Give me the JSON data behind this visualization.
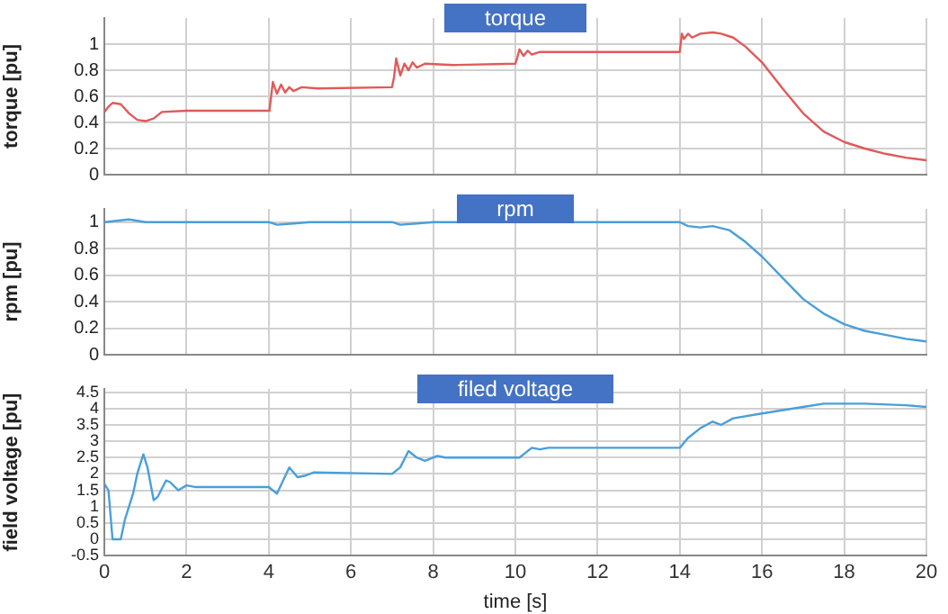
{
  "chart_data": [
    {
      "type": "line",
      "title": "torque",
      "ylabel": "torque [pu]",
      "xlim": [
        0,
        20
      ],
      "xticks": [
        0,
        2,
        4,
        6,
        8,
        10,
        12,
        14,
        16,
        18,
        20
      ],
      "ylim": [
        0,
        1.2
      ],
      "yticks": [
        0,
        0.2,
        0.4,
        0.6,
        0.8,
        1
      ],
      "grid": true,
      "tick_labels": "y",
      "series": [
        {
          "color": "#e05a5a",
          "x": [
            0,
            0.1,
            0.2,
            0.4,
            0.6,
            0.8,
            1.0,
            1.2,
            1.4,
            2,
            4,
            4.02,
            4.1,
            4.2,
            4.3,
            4.4,
            4.5,
            4.6,
            4.8,
            5.2,
            7,
            7.05,
            7.1,
            7.2,
            7.3,
            7.4,
            7.5,
            7.6,
            7.8,
            8.5,
            10,
            10.05,
            10.1,
            10.2,
            10.3,
            10.4,
            10.6,
            14,
            14.05,
            14.1,
            14.2,
            14.3,
            14.5,
            14.8,
            15.0,
            15.3,
            15.6,
            16,
            16.5,
            17,
            17.5,
            18,
            18.5,
            19,
            19.5,
            20
          ],
          "values": [
            0.48,
            0.52,
            0.55,
            0.54,
            0.47,
            0.42,
            0.41,
            0.43,
            0.48,
            0.49,
            0.49,
            0.5,
            0.71,
            0.62,
            0.69,
            0.63,
            0.67,
            0.64,
            0.67,
            0.66,
            0.67,
            0.75,
            0.89,
            0.76,
            0.85,
            0.8,
            0.86,
            0.82,
            0.85,
            0.84,
            0.85,
            0.9,
            0.96,
            0.91,
            0.95,
            0.92,
            0.94,
            0.94,
            1.08,
            1.04,
            1.08,
            1.05,
            1.08,
            1.09,
            1.08,
            1.05,
            0.98,
            0.86,
            0.66,
            0.47,
            0.33,
            0.25,
            0.2,
            0.16,
            0.13,
            0.11
          ]
        }
      ]
    },
    {
      "type": "line",
      "title": "rpm",
      "ylabel": "rpm [pu]",
      "xlim": [
        0,
        20
      ],
      "xticks": [
        0,
        2,
        4,
        6,
        8,
        10,
        12,
        14,
        16,
        18,
        20
      ],
      "ylim": [
        0,
        1.1
      ],
      "yticks": [
        0,
        0.2,
        0.4,
        0.6,
        0.8,
        1
      ],
      "grid": true,
      "tick_labels": "y",
      "series": [
        {
          "color": "#4a9fd8",
          "x": [
            0,
            0.3,
            0.6,
            1,
            4,
            4.2,
            4.6,
            5,
            7,
            7.2,
            7.6,
            8,
            14,
            14.2,
            14.5,
            14.8,
            15.2,
            15.6,
            16,
            16.5,
            17,
            17.5,
            18,
            18.5,
            19,
            19.5,
            20
          ],
          "values": [
            1.0,
            1.01,
            1.02,
            1.0,
            1.0,
            0.98,
            0.99,
            1.0,
            1.0,
            0.98,
            0.99,
            1.0,
            1.0,
            0.97,
            0.96,
            0.97,
            0.94,
            0.85,
            0.74,
            0.58,
            0.42,
            0.31,
            0.23,
            0.18,
            0.15,
            0.12,
            0.1
          ]
        }
      ]
    },
    {
      "type": "line",
      "title": "filed voltage",
      "xlabel": "time [s]",
      "ylabel": "field voltage [pu]",
      "xlim": [
        0,
        20
      ],
      "xticks": [
        0,
        2,
        4,
        6,
        8,
        10,
        12,
        14,
        16,
        18,
        20
      ],
      "ylim": [
        -0.5,
        4.6
      ],
      "yticks": [
        -0.5,
        0,
        0.5,
        1,
        1.5,
        2,
        2.5,
        3,
        3.5,
        4,
        4.5
      ],
      "grid": true,
      "series": [
        {
          "color": "#4a9fd8",
          "x": [
            0,
            0.1,
            0.2,
            0.4,
            0.5,
            0.7,
            0.8,
            0.95,
            1.05,
            1.2,
            1.3,
            1.5,
            1.6,
            1.8,
            2.0,
            2.2,
            4,
            4.2,
            4.5,
            4.7,
            4.9,
            5.1,
            7,
            7.2,
            7.4,
            7.6,
            7.8,
            8.1,
            8.3,
            10,
            10.1,
            10.4,
            10.6,
            10.8,
            14,
            14.2,
            14.5,
            14.8,
            15,
            15.3,
            16,
            17,
            17.5,
            18.5,
            19.5,
            20
          ],
          "values": [
            1.7,
            1.5,
            0,
            0,
            0.6,
            1.4,
            2.0,
            2.6,
            2.2,
            1.2,
            1.3,
            1.8,
            1.75,
            1.5,
            1.65,
            1.6,
            1.6,
            1.4,
            2.2,
            1.9,
            1.95,
            2.05,
            2.0,
            2.2,
            2.7,
            2.5,
            2.4,
            2.55,
            2.5,
            2.5,
            2.5,
            2.8,
            2.75,
            2.8,
            2.8,
            3.1,
            3.4,
            3.6,
            3.5,
            3.7,
            3.85,
            4.05,
            4.15,
            4.15,
            4.1,
            4.05
          ]
        }
      ]
    }
  ]
}
